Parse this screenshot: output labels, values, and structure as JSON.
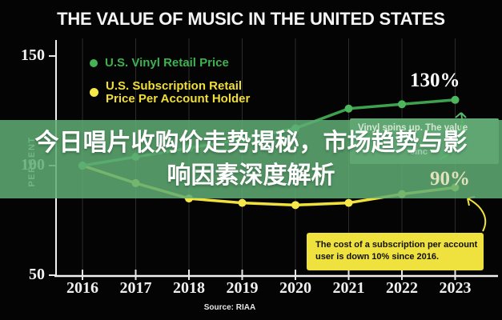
{
  "header": {
    "title": "THE VALUE OF MUSIC IN THE UNITED STATES"
  },
  "overlay": {
    "line1": "今日唱片收购价走势揭秘，市场趋势与影",
    "line2": "响因素深度解析"
  },
  "legend": {
    "vinyl_label": "U.S. Vinyl Retail Price",
    "subscription_label_line1": "U.S. Subscription Retail",
    "subscription_label_line2": "Price Per Account Holder"
  },
  "annotations": {
    "vinyl_value_label": "130%",
    "subscription_value_label": "90%",
    "vinyl_box_text": "Vinyl spins up. The value",
    "vinyl_box_fragment": "sinc",
    "subscription_box_line1": "The cost of a subscription per account",
    "subscription_box_line2": "user is down 10% since 2016."
  },
  "colors": {
    "background": "#040404",
    "band_green": "#5FAC74",
    "vinyl_line": "#3DA14E",
    "vinyl_dot": "#4CB75C",
    "subscription_line": "#F2E13C",
    "subscription_dot": "#F6E84B",
    "callout_bg": "#F0E23E",
    "info_box_bg": "#5FA673",
    "axis_white": "#F0F0F0",
    "gridline": "#2C2C2C",
    "pale_yellow_label": "#E0E1BD"
  },
  "chart_data": {
    "type": "line",
    "title": "THE VALUE OF MUSIC IN THE UNITED STATES",
    "categories": [
      "2016",
      "2017",
      "2018",
      "2019",
      "2020",
      "2021",
      "2022",
      "2023"
    ],
    "series": [
      {
        "name": "U.S. Vinyl Retail Price",
        "color": "#3DA14E",
        "dot_color": "#4CB75C",
        "values": [
          100,
          104,
          108,
          112,
          117,
          126,
          128,
          130
        ],
        "end_label": "130%"
      },
      {
        "name": "U.S. Subscription Retail Price Per Account Holder",
        "color": "#F2E13C",
        "dot_color": "#F6E84B",
        "values": [
          100,
          92,
          85,
          83,
          82,
          83,
          87,
          90
        ],
        "end_label": "90%"
      }
    ],
    "xlabel": "",
    "ylabel": "PERCENT",
    "ylim": [
      50,
      155
    ],
    "yticks": [
      150,
      100,
      50
    ],
    "grid": "vertical-only",
    "legend_position": "top-left",
    "source": "Source: RIAA"
  }
}
